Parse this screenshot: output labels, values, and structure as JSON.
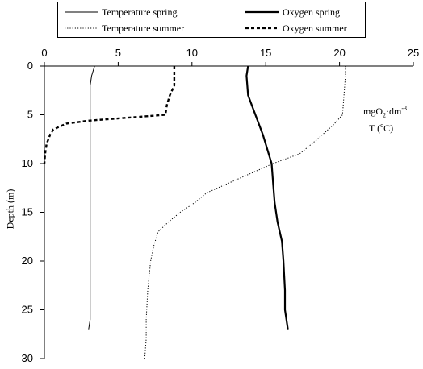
{
  "chart_data": {
    "type": "line",
    "ylabel": "Depth (m)",
    "xlabel": "",
    "x_axis_position": "top",
    "y_inverted": true,
    "xlim": [
      0,
      25
    ],
    "ylim": [
      0,
      30
    ],
    "xticks": [
      0,
      5,
      10,
      15,
      20,
      25
    ],
    "yticks": [
      0,
      5,
      10,
      15,
      20,
      25,
      30
    ],
    "grid": false,
    "legend_position": "top",
    "series": [
      {
        "name": "Temperature spring",
        "style": "thin-solid",
        "points": [
          [
            3.4,
            0
          ],
          [
            3.2,
            1
          ],
          [
            3.1,
            2
          ],
          [
            3.1,
            5
          ],
          [
            3.1,
            10
          ],
          [
            3.1,
            15
          ],
          [
            3.1,
            20
          ],
          [
            3.1,
            26
          ],
          [
            3.0,
            27
          ]
        ]
      },
      {
        "name": "Oxygen spring",
        "style": "thick-solid",
        "points": [
          [
            13.8,
            0
          ],
          [
            13.7,
            1
          ],
          [
            13.8,
            3
          ],
          [
            14.3,
            5
          ],
          [
            14.8,
            7
          ],
          [
            15.1,
            8.5
          ],
          [
            15.4,
            10
          ],
          [
            15.5,
            12
          ],
          [
            15.6,
            14
          ],
          [
            15.8,
            16
          ],
          [
            16.1,
            18
          ],
          [
            16.2,
            20
          ],
          [
            16.3,
            23
          ],
          [
            16.3,
            25
          ],
          [
            16.4,
            26
          ],
          [
            16.5,
            27
          ]
        ]
      },
      {
        "name": "Temperature summer",
        "style": "dotted",
        "points": [
          [
            20.4,
            0
          ],
          [
            20.4,
            1
          ],
          [
            20.3,
            3
          ],
          [
            20.2,
            5
          ],
          [
            19.6,
            6
          ],
          [
            18.5,
            7.5
          ],
          [
            17.3,
            9
          ],
          [
            15.5,
            10
          ],
          [
            14.0,
            11
          ],
          [
            12.5,
            12
          ],
          [
            11.0,
            13
          ],
          [
            10.2,
            14
          ],
          [
            9.2,
            15
          ],
          [
            8.4,
            16
          ],
          [
            7.7,
            17
          ],
          [
            7.4,
            18.5
          ],
          [
            7.2,
            20
          ],
          [
            7.0,
            23
          ],
          [
            6.9,
            26
          ],
          [
            6.9,
            28
          ],
          [
            6.8,
            30
          ]
        ]
      },
      {
        "name": "Oxygen summer",
        "style": "dashed",
        "points": [
          [
            8.8,
            0
          ],
          [
            8.8,
            2
          ],
          [
            8.5,
            3
          ],
          [
            8.3,
            4
          ],
          [
            8.2,
            5
          ],
          [
            6.5,
            5.2
          ],
          [
            3.0,
            5.6
          ],
          [
            1.5,
            5.9
          ],
          [
            0.6,
            6.5
          ],
          [
            0.4,
            7
          ],
          [
            0.15,
            8
          ],
          [
            0.05,
            9
          ],
          [
            0.0,
            10
          ]
        ]
      }
    ]
  },
  "annotations": {
    "oxygen_unit": "mgO",
    "oxygen_unit_sub": "2",
    "oxygen_unit_mid": "·dm",
    "oxygen_unit_sup": "-3",
    "temperature_unit": "T (",
    "temperature_unit_o": "o",
    "temperature_unit_end": "C)"
  }
}
